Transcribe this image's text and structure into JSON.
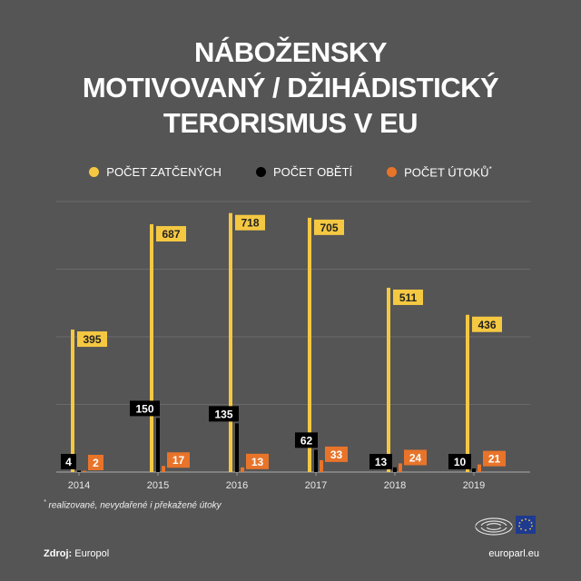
{
  "title_lines": [
    "NÁBOŽENSKY",
    "MOTIVOVANÝ / DŽIHÁDISTICKÝ",
    "TERORISMUS V EU"
  ],
  "legend": [
    {
      "label": "POČET ZATČENÝCH",
      "color": "#f5c842"
    },
    {
      "label": "POČET OBĚTÍ",
      "color": "#000000"
    },
    {
      "label": "POČET ÚTOKŮ",
      "color": "#e8742a",
      "marker": "*"
    }
  ],
  "chart_data": {
    "type": "bar",
    "categories": [
      "2014",
      "2015",
      "2016",
      "2017",
      "2018",
      "2019"
    ],
    "series": [
      {
        "name": "POČET ZATČENÝCH",
        "color": "#f5c842",
        "values": [
          395,
          687,
          718,
          705,
          511,
          436
        ]
      },
      {
        "name": "POČET OBĚTÍ",
        "color": "#000000",
        "values": [
          4,
          150,
          135,
          62,
          13,
          10
        ]
      },
      {
        "name": "POČET ÚTOKŮ",
        "color": "#e8742a",
        "values": [
          2,
          17,
          13,
          33,
          24,
          21
        ]
      }
    ],
    "ylim": [
      0,
      750
    ],
    "grid": true,
    "legend_position": "top"
  },
  "footnote": {
    "marker": "*",
    "text": "realizované, nevydařené i překažené útoky"
  },
  "source": {
    "label": "Zdroj:",
    "value": "Europol"
  },
  "site": "europarl.eu",
  "logo": "european-parliament-logo"
}
